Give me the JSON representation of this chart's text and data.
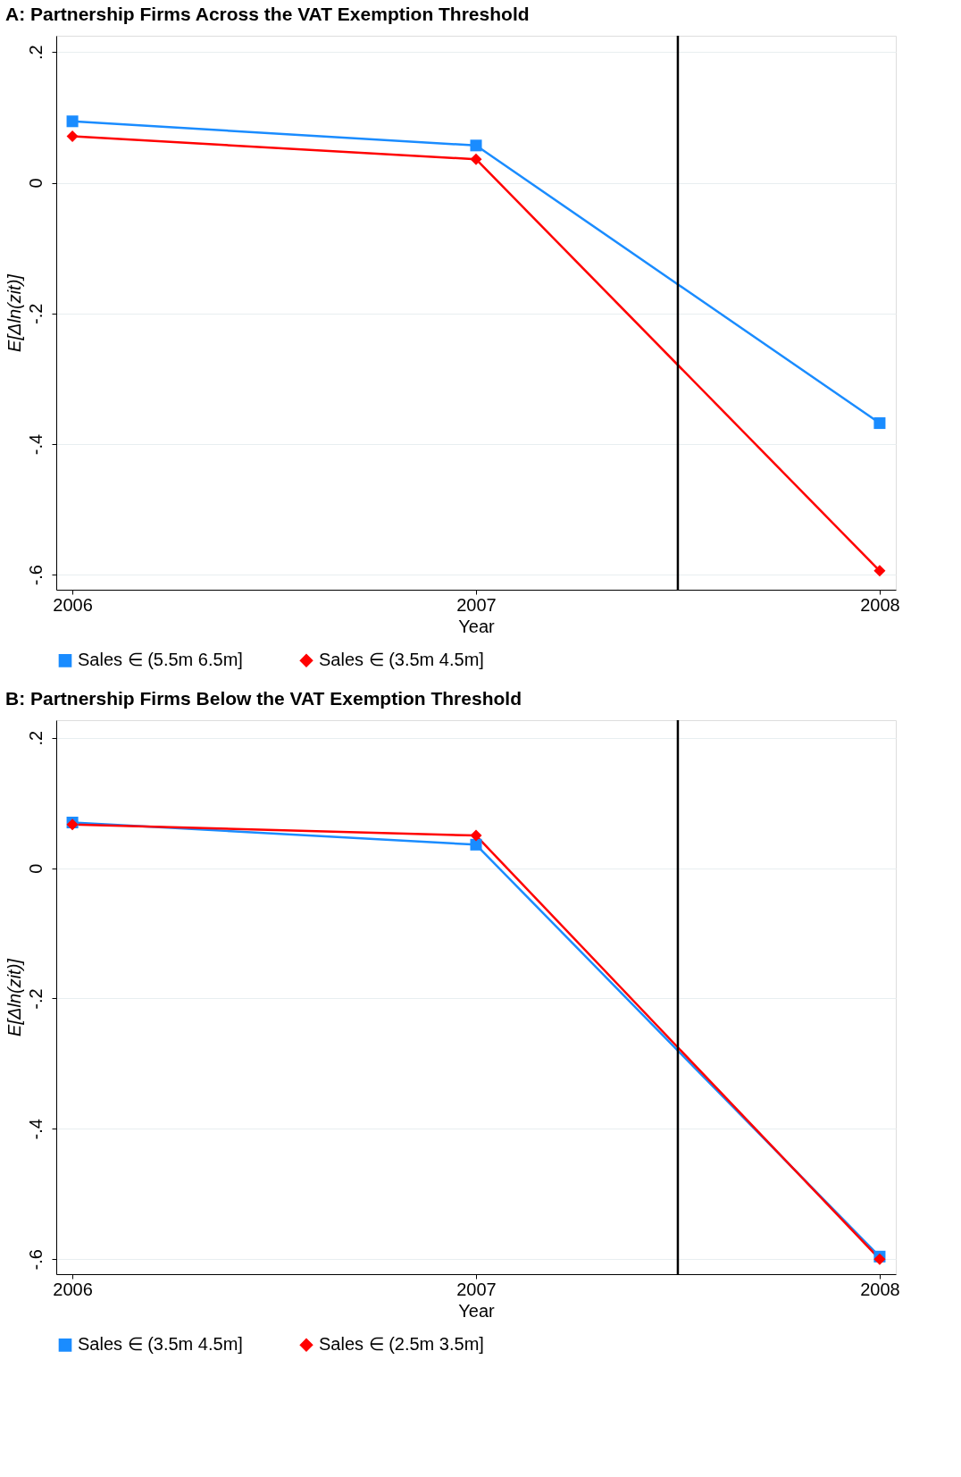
{
  "chart_data": [
    {
      "type": "line",
      "title": "A: Partnership Firms Across the VAT Exemption Threshold",
      "xlabel": "Year",
      "ylabel": "E[Δln(zit)]",
      "x": [
        2006,
        2007,
        2008
      ],
      "xlim": [
        2005.96,
        2008.04
      ],
      "xticks": [
        2006,
        2007,
        2008
      ],
      "ylim": [
        -0.623,
        0.225
      ],
      "yticks": [
        {
          "value": 0.2,
          "label": ".2"
        },
        0,
        {
          "value": -0.2,
          "label": "-.2"
        },
        {
          "value": -0.4,
          "label": "-.4"
        },
        {
          "value": -0.6,
          "label": "-.6"
        }
      ],
      "series": [
        {
          "name": "Sales ∈ (5.5m 6.5m]",
          "color": "#1a8cff",
          "marker": "square",
          "values": [
            0.094,
            0.057,
            -0.368
          ]
        },
        {
          "name": "Sales ∈ (3.5m 4.5m]",
          "color": "#ff0000",
          "marker": "diamond",
          "values": [
            0.071,
            0.036,
            -0.594
          ]
        }
      ],
      "ref_lines": [
        {
          "axis": "x",
          "value": 2007.5,
          "color": "#000000"
        }
      ],
      "grid": "y",
      "legend": "bottom",
      "line_style": "solid"
    },
    {
      "type": "line",
      "title": "B: Partnership Firms Below the VAT Exemption Threshold",
      "xlabel": "Year",
      "ylabel": "E[Δln(zit)]",
      "x": [
        2006,
        2007,
        2008
      ],
      "xlim": [
        2005.96,
        2008.04
      ],
      "xticks": [
        2006,
        2007,
        2008
      ],
      "ylim": [
        -0.623,
        0.227
      ],
      "yticks": [
        {
          "value": 0.2,
          "label": ".2"
        },
        0,
        {
          "value": -0.2,
          "label": "-.2"
        },
        {
          "value": -0.4,
          "label": "-.4"
        },
        {
          "value": -0.6,
          "label": "-.6"
        }
      ],
      "series": [
        {
          "name": "Sales ∈ (3.5m 4.5m]",
          "color": "#1a8cff",
          "marker": "square",
          "values": [
            0.07,
            0.036,
            -0.596
          ]
        },
        {
          "name": "Sales ∈ (2.5m 3.5m]",
          "color": "#ff0000",
          "marker": "diamond",
          "values": [
            0.067,
            0.05,
            -0.6
          ]
        }
      ],
      "ref_lines": [
        {
          "axis": "x",
          "value": 2007.5,
          "color": "#000000"
        }
      ],
      "grid": "y",
      "legend": "bottom",
      "line_style": "solid"
    }
  ]
}
